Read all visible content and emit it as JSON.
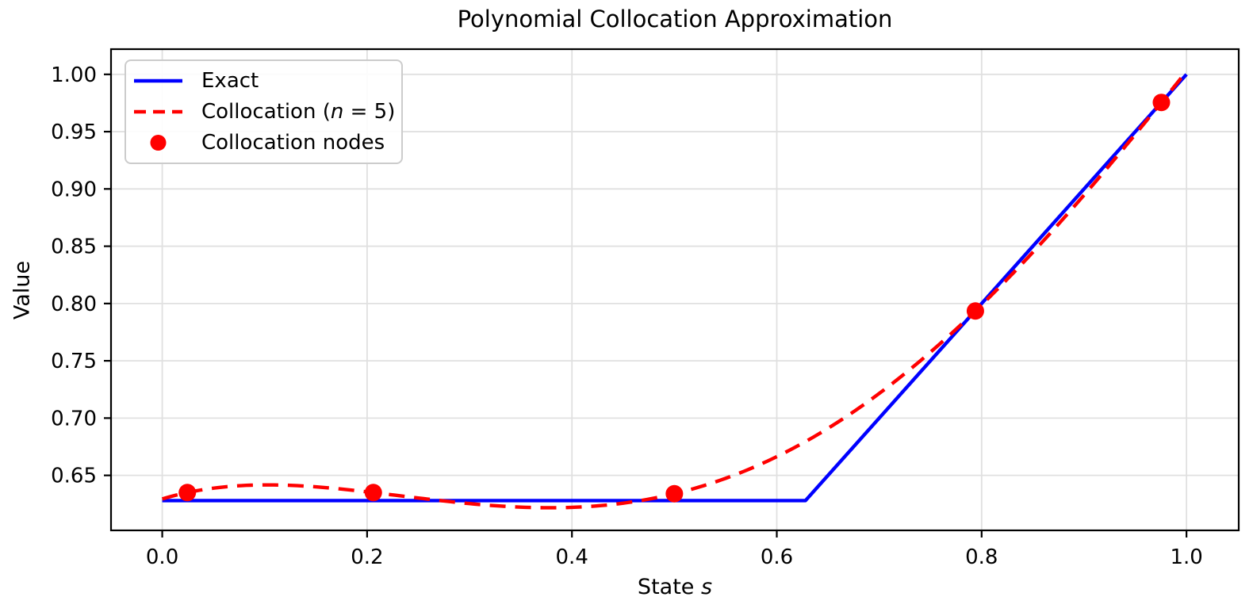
{
  "figure": {
    "background": "#ffffff"
  },
  "chart_data": {
    "type": "line",
    "title": "Polynomial Collocation Approximation",
    "xlabel": "State s",
    "xlabel_parts": [
      {
        "t": "State "
      },
      {
        "t": "s",
        "i": true
      }
    ],
    "ylabel": "Value",
    "xlim": [
      -0.05,
      1.051
    ],
    "ylim": [
      0.602,
      1.022
    ],
    "grid": true,
    "grid_color": "#e0e0e0",
    "spine_color": "#000000",
    "legend_position": "upper left",
    "xticks": {
      "values": [
        0.0,
        0.2,
        0.4,
        0.6,
        0.8,
        1.0
      ],
      "labels": [
        "0.0",
        "0.2",
        "0.4",
        "0.6",
        "0.8",
        "1.0"
      ]
    },
    "yticks": {
      "values": [
        0.65,
        0.7,
        0.75,
        0.8,
        0.85,
        0.9,
        0.95,
        1.0
      ],
      "labels": [
        "0.65",
        "0.70",
        "0.75",
        "0.80",
        "0.85",
        "0.90",
        "0.95",
        "1.00"
      ]
    },
    "series": [
      {
        "name": "Exact",
        "type": "line",
        "style": "solid",
        "color": "#0000ff",
        "linewidth": 4.4,
        "points": [
          [
            0.0,
            0.628
          ],
          [
            0.628,
            0.628
          ],
          [
            1.0,
            1.0
          ]
        ]
      },
      {
        "name": "Collocation (n = 5)",
        "type": "line",
        "style": "dashed",
        "color": "#ff0000",
        "linewidth": 4.4,
        "dash": [
          20,
          12
        ],
        "method": "polynomial-through-nodes",
        "x_start": 0.0,
        "x_end": 1.0
      },
      {
        "name": "Collocation nodes",
        "type": "scatter",
        "color": "#ff0000",
        "marker_radius": 11,
        "points": [
          [
            0.0245,
            0.635
          ],
          [
            0.2061,
            0.635
          ],
          [
            0.5,
            0.634
          ],
          [
            0.7939,
            0.7935
          ],
          [
            0.9755,
            0.9755
          ]
        ]
      }
    ]
  },
  "legend": {
    "items": [
      {
        "label": "Exact",
        "parts": [
          {
            "t": "Exact"
          }
        ],
        "handle": "line-solid",
        "color": "#0000ff"
      },
      {
        "label": "Collocation (n = 5)",
        "parts": [
          {
            "t": "Collocation ("
          },
          {
            "t": "n",
            "i": true
          },
          {
            "t": " = 5)"
          }
        ],
        "handle": "line-dashed",
        "color": "#ff0000"
      },
      {
        "label": "Collocation nodes",
        "parts": [
          {
            "t": "Collocation nodes"
          }
        ],
        "handle": "marker",
        "color": "#ff0000"
      }
    ]
  }
}
